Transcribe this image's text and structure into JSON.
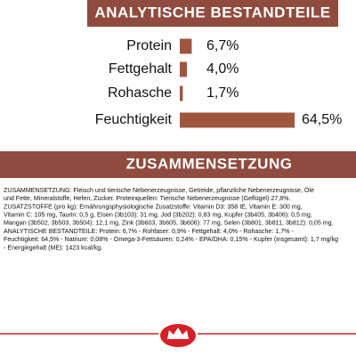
{
  "chart_data": {
    "type": "bar",
    "title": "ANALYTISCHE BESTANDTEILE",
    "categories": [
      "Protein",
      "Fettgehalt",
      "Rohasche",
      "Feuchtigkeit"
    ],
    "values": [
      6.7,
      4.0,
      1.7,
      64.5
    ],
    "value_labels": [
      "6,7%",
      "4,0%",
      "1,7%",
      "64,5%"
    ],
    "color": "#a0553f",
    "orientation": "horizontal"
  },
  "composition": {
    "title": "ZUSAMMENSETZUNG",
    "lines": [
      "ZUSAMMENSETZUNG: Fleisch und tierische Nebenerzeugnisse, Getreide, pflanzliche Nebenerzeugnisse, Öle",
      "und Fette, Mineralstoffe, Hefen, Zucker. Proteinquellen: Tierische Nebenerzeugnisse (Geflügel) 27,8%.",
      "ZUSATZSTOFFE (pro kg): Ernährungsphysiologische Zusatzstoffe: Vitamin D3: 358 IE, Vitamin E: 300 mg,",
      "Vitamin C: 105 mg, Taurin: 0,5 g, Eisen (3b103): 31 mg, Jod (3b202): 0,83 mg, Kupfer (3b405, 3b406): 0,5 mg,",
      "Mangan (3b502, 3b503, 3b504): 12,1 mg, Zink (3b603, 3b605, 3b606): 77 mg, Selen (3b801, 3b811, 3b812): 0,05 mg.",
      "ANALYTISCHE BESTANDTEILE: Protein: 6,7% - Rohfaser: 0,9% - Fettgehalt: 4,0% - Rohasche: 1,7% -",
      "Feuchtigkeit: 64,5% - Natrium: 0,08% - Omega-3-Fettsäuren: 0,24% - EPA/DHA: 0,15% - Kupfer (insgesamt): 1,7 mg/kg",
      "- Energiegehalt (ME): 1423 kcal/kg."
    ]
  }
}
